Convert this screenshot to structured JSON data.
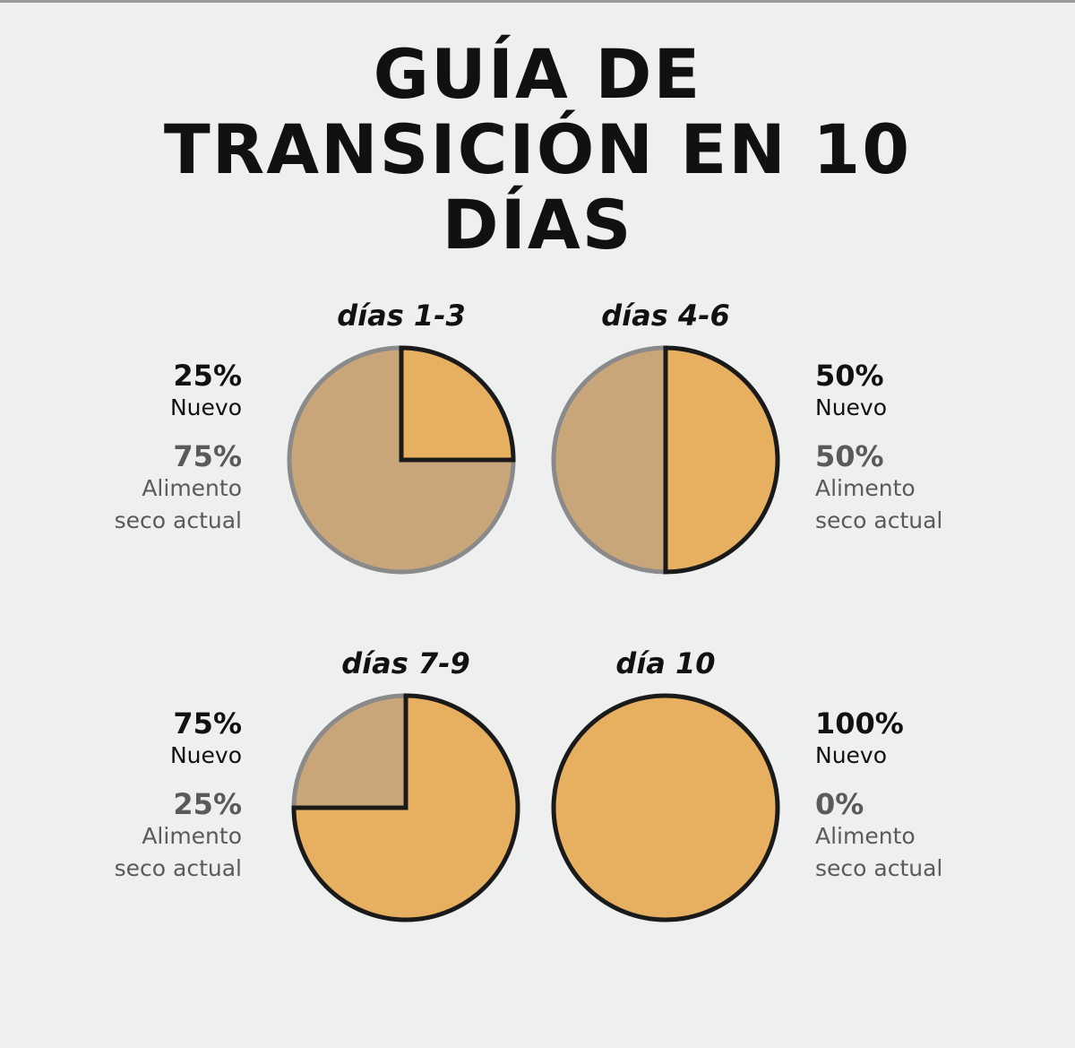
{
  "title": "GUÍA DE TRANSICIÓN EN 10 DÍAS",
  "chart_data": [
    {
      "type": "pie",
      "title": "días 1-3",
      "categories": [
        "Nuevo",
        "Alimento seco actual"
      ],
      "values": [
        25,
        75
      ],
      "value_labels": [
        "25%",
        "75%"
      ],
      "colors": [
        "#e6b060",
        "#c9a679"
      ]
    },
    {
      "type": "pie",
      "title": "días 4-6",
      "categories": [
        "Nuevo",
        "Alimento seco actual"
      ],
      "values": [
        50,
        50
      ],
      "value_labels": [
        "50%",
        "50%"
      ],
      "colors": [
        "#e6b060",
        "#c9a679"
      ]
    },
    {
      "type": "pie",
      "title": "días 7-9",
      "categories": [
        "Nuevo",
        "Alimento seco actual"
      ],
      "values": [
        75,
        25
      ],
      "value_labels": [
        "75%",
        "25%"
      ],
      "colors": [
        "#e6b060",
        "#c9a679"
      ]
    },
    {
      "type": "pie",
      "title": "día 10",
      "categories": [
        "Nuevo",
        "Alimento seco actual"
      ],
      "values": [
        100,
        0
      ],
      "value_labels": [
        "100%",
        "0%"
      ],
      "colors": [
        "#e6b060",
        "#c9a679"
      ]
    }
  ]
}
